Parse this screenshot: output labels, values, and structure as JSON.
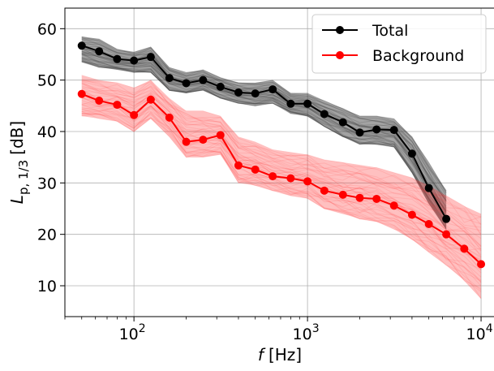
{
  "chart_data": {
    "type": "line",
    "x_scale": "log",
    "xlabel_symbol": "f",
    "xlabel_unit": "[Hz]",
    "ylabel_main": "L",
    "ylabel_sub": "p, 1/3",
    "ylabel_unit": "[dB]",
    "xlim": [
      40,
      12000
    ],
    "ylim": [
      4,
      64
    ],
    "grid": true,
    "legend_position": "top-right",
    "x_ticks": [
      {
        "value": 100,
        "base": "10",
        "exp": "2"
      },
      {
        "value": 1000,
        "base": "10",
        "exp": "3"
      },
      {
        "value": 10000,
        "base": "10",
        "exp": "4"
      }
    ],
    "y_ticks": [
      10,
      20,
      30,
      40,
      50,
      60
    ],
    "x": [
      50,
      63,
      80,
      100,
      125,
      160,
      200,
      250,
      315,
      400,
      500,
      630,
      800,
      1000,
      1250,
      1600,
      2000,
      2500,
      3150,
      4000,
      5000,
      6300,
      8000,
      10000
    ],
    "series": [
      {
        "name": "Total",
        "color": "#000000",
        "band_color": "#333333",
        "values": [
          56.7,
          55.6,
          54.1,
          53.8,
          54.5,
          50.4,
          49.4,
          50.0,
          48.7,
          47.6,
          47.4,
          48.2,
          45.4,
          45.4,
          43.4,
          41.8,
          39.8,
          40.4,
          40.3,
          35.7,
          29.0,
          23.0,
          null,
          null
        ],
        "band_upper": [
          58.5,
          58.0,
          56.0,
          55.5,
          56.5,
          52.5,
          51.5,
          52.0,
          50.5,
          49.5,
          49.5,
          50.0,
          47.5,
          47.5,
          46.0,
          44.5,
          43.0,
          43.0,
          42.5,
          39.0,
          34.0,
          28.5,
          null,
          null
        ],
        "band_lower": [
          53.5,
          52.5,
          52.0,
          51.5,
          51.5,
          48.0,
          47.5,
          48.0,
          46.5,
          45.5,
          45.0,
          45.5,
          43.5,
          43.0,
          41.0,
          39.0,
          37.5,
          37.5,
          37.0,
          32.0,
          26.0,
          21.0,
          null,
          null
        ]
      },
      {
        "name": "Background",
        "color": "#ff0000",
        "band_color": "#ff3030",
        "values": [
          47.3,
          46.0,
          45.2,
          43.2,
          46.2,
          42.7,
          38.0,
          38.4,
          39.3,
          33.4,
          32.6,
          31.3,
          30.9,
          30.3,
          28.5,
          27.7,
          27.1,
          26.9,
          25.6,
          23.8,
          22.0,
          20.0,
          17.2,
          14.2
        ],
        "band_upper": [
          51.0,
          50.0,
          49.5,
          48.5,
          50.0,
          46.5,
          44.0,
          44.0,
          43.0,
          39.0,
          38.0,
          36.5,
          36.0,
          35.5,
          34.5,
          34.0,
          33.5,
          33.0,
          32.0,
          31.0,
          29.5,
          27.5,
          25.5,
          24.0
        ],
        "band_lower": [
          43.0,
          42.5,
          42.0,
          40.0,
          42.5,
          39.0,
          35.0,
          35.0,
          35.5,
          30.0,
          29.5,
          28.5,
          27.5,
          27.0,
          25.0,
          24.0,
          23.0,
          22.5,
          21.0,
          19.0,
          16.5,
          14.0,
          11.0,
          7.5
        ]
      }
    ]
  }
}
